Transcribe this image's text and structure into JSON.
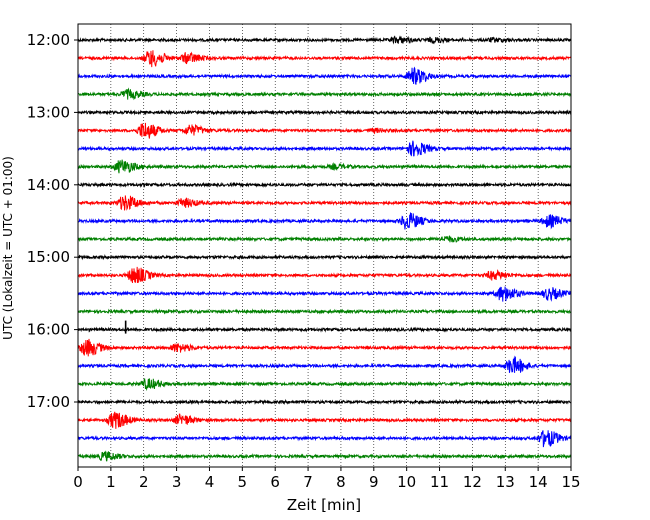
{
  "chart_data": {
    "type": "line",
    "title": "",
    "xlabel": "Zeit  [min]",
    "ylabel": "UTC (Lokalzeit = UTC + 01:00)",
    "xlim": [
      0,
      15
    ],
    "x_ticks": [
      "0",
      "1",
      "2",
      "3",
      "4",
      "5",
      "6",
      "7",
      "8",
      "9",
      "10",
      "11",
      "12",
      "13",
      "14",
      "15"
    ],
    "y_ticks": [
      {
        "label": "12:00",
        "row": 0
      },
      {
        "label": "13:00",
        "row": 4
      },
      {
        "label": "14:00",
        "row": 8
      },
      {
        "label": "15:00",
        "row": 12
      },
      {
        "label": "16:00",
        "row": 16
      },
      {
        "label": "17:00",
        "row": 20
      }
    ],
    "grid": "vertical dotted at each minute",
    "row_colors": [
      "#000000",
      "#ff0000",
      "#0000ff",
      "#008000"
    ],
    "traces": [
      {
        "start": "12:00",
        "color": "#000000",
        "bursts": [
          {
            "t": 9.7,
            "amp": 0.35
          },
          {
            "t": 10.8,
            "amp": 0.25
          },
          {
            "t": 12.6,
            "amp": 0.2
          }
        ]
      },
      {
        "start": "12:15",
        "color": "#ff0000",
        "bursts": [
          {
            "t": 2.2,
            "amp": 1.0
          },
          {
            "t": 3.3,
            "amp": 0.6
          }
        ]
      },
      {
        "start": "12:30",
        "color": "#0000ff",
        "bursts": [
          {
            "t": 10.2,
            "amp": 1.0
          }
        ]
      },
      {
        "start": "12:45",
        "color": "#008000",
        "bursts": [
          {
            "t": 1.5,
            "amp": 0.5
          }
        ]
      },
      {
        "start": "13:00",
        "color": "#000000",
        "bursts": []
      },
      {
        "start": "13:15",
        "color": "#ff0000",
        "bursts": [
          {
            "t": 2.0,
            "amp": 1.0
          },
          {
            "t": 3.4,
            "amp": 0.6
          },
          {
            "t": 9.0,
            "amp": 0.2
          }
        ]
      },
      {
        "start": "13:30",
        "color": "#0000ff",
        "bursts": [
          {
            "t": 10.2,
            "amp": 0.9
          }
        ]
      },
      {
        "start": "13:45",
        "color": "#008000",
        "bursts": [
          {
            "t": 1.3,
            "amp": 0.8
          },
          {
            "t": 7.8,
            "amp": 0.25
          }
        ]
      },
      {
        "start": "14:00",
        "color": "#000000",
        "bursts": []
      },
      {
        "start": "14:15",
        "color": "#ff0000",
        "bursts": [
          {
            "t": 1.4,
            "amp": 0.9
          },
          {
            "t": 3.2,
            "amp": 0.5
          }
        ]
      },
      {
        "start": "14:30",
        "color": "#0000ff",
        "bursts": [
          {
            "t": 10.0,
            "amp": 1.0
          },
          {
            "t": 14.3,
            "amp": 0.7
          }
        ]
      },
      {
        "start": "14:45",
        "color": "#008000",
        "bursts": [
          {
            "t": 11.2,
            "amp": 0.3
          }
        ]
      },
      {
        "start": "15:00",
        "color": "#000000",
        "bursts": []
      },
      {
        "start": "15:15",
        "color": "#ff0000",
        "bursts": [
          {
            "t": 1.7,
            "amp": 1.0
          },
          {
            "t": 12.6,
            "amp": 0.5
          }
        ]
      },
      {
        "start": "15:30",
        "color": "#0000ff",
        "bursts": [
          {
            "t": 12.9,
            "amp": 0.9
          },
          {
            "t": 14.3,
            "amp": 0.7
          }
        ]
      },
      {
        "start": "15:45",
        "color": "#008000",
        "bursts": []
      },
      {
        "start": "16:00",
        "color": "#000000",
        "bursts": [
          {
            "t": 1.45,
            "amp": 0.9,
            "spike": true
          }
        ]
      },
      {
        "start": "16:15",
        "color": "#ff0000",
        "bursts": [
          {
            "t": 0.25,
            "amp": 1.0
          },
          {
            "t": 3.0,
            "amp": 0.5
          }
        ]
      },
      {
        "start": "16:30",
        "color": "#0000ff",
        "bursts": [
          {
            "t": 13.2,
            "amp": 1.0
          }
        ]
      },
      {
        "start": "16:45",
        "color": "#008000",
        "bursts": [
          {
            "t": 2.1,
            "amp": 0.6
          }
        ]
      },
      {
        "start": "17:00",
        "color": "#000000",
        "bursts": []
      },
      {
        "start": "17:15",
        "color": "#ff0000",
        "bursts": [
          {
            "t": 1.1,
            "amp": 1.0
          },
          {
            "t": 3.1,
            "amp": 0.6
          }
        ]
      },
      {
        "start": "17:30",
        "color": "#0000ff",
        "bursts": [
          {
            "t": 14.2,
            "amp": 1.0
          }
        ]
      },
      {
        "start": "17:45",
        "color": "#008000",
        "bursts": [
          {
            "t": 0.8,
            "amp": 0.5
          }
        ]
      }
    ]
  }
}
